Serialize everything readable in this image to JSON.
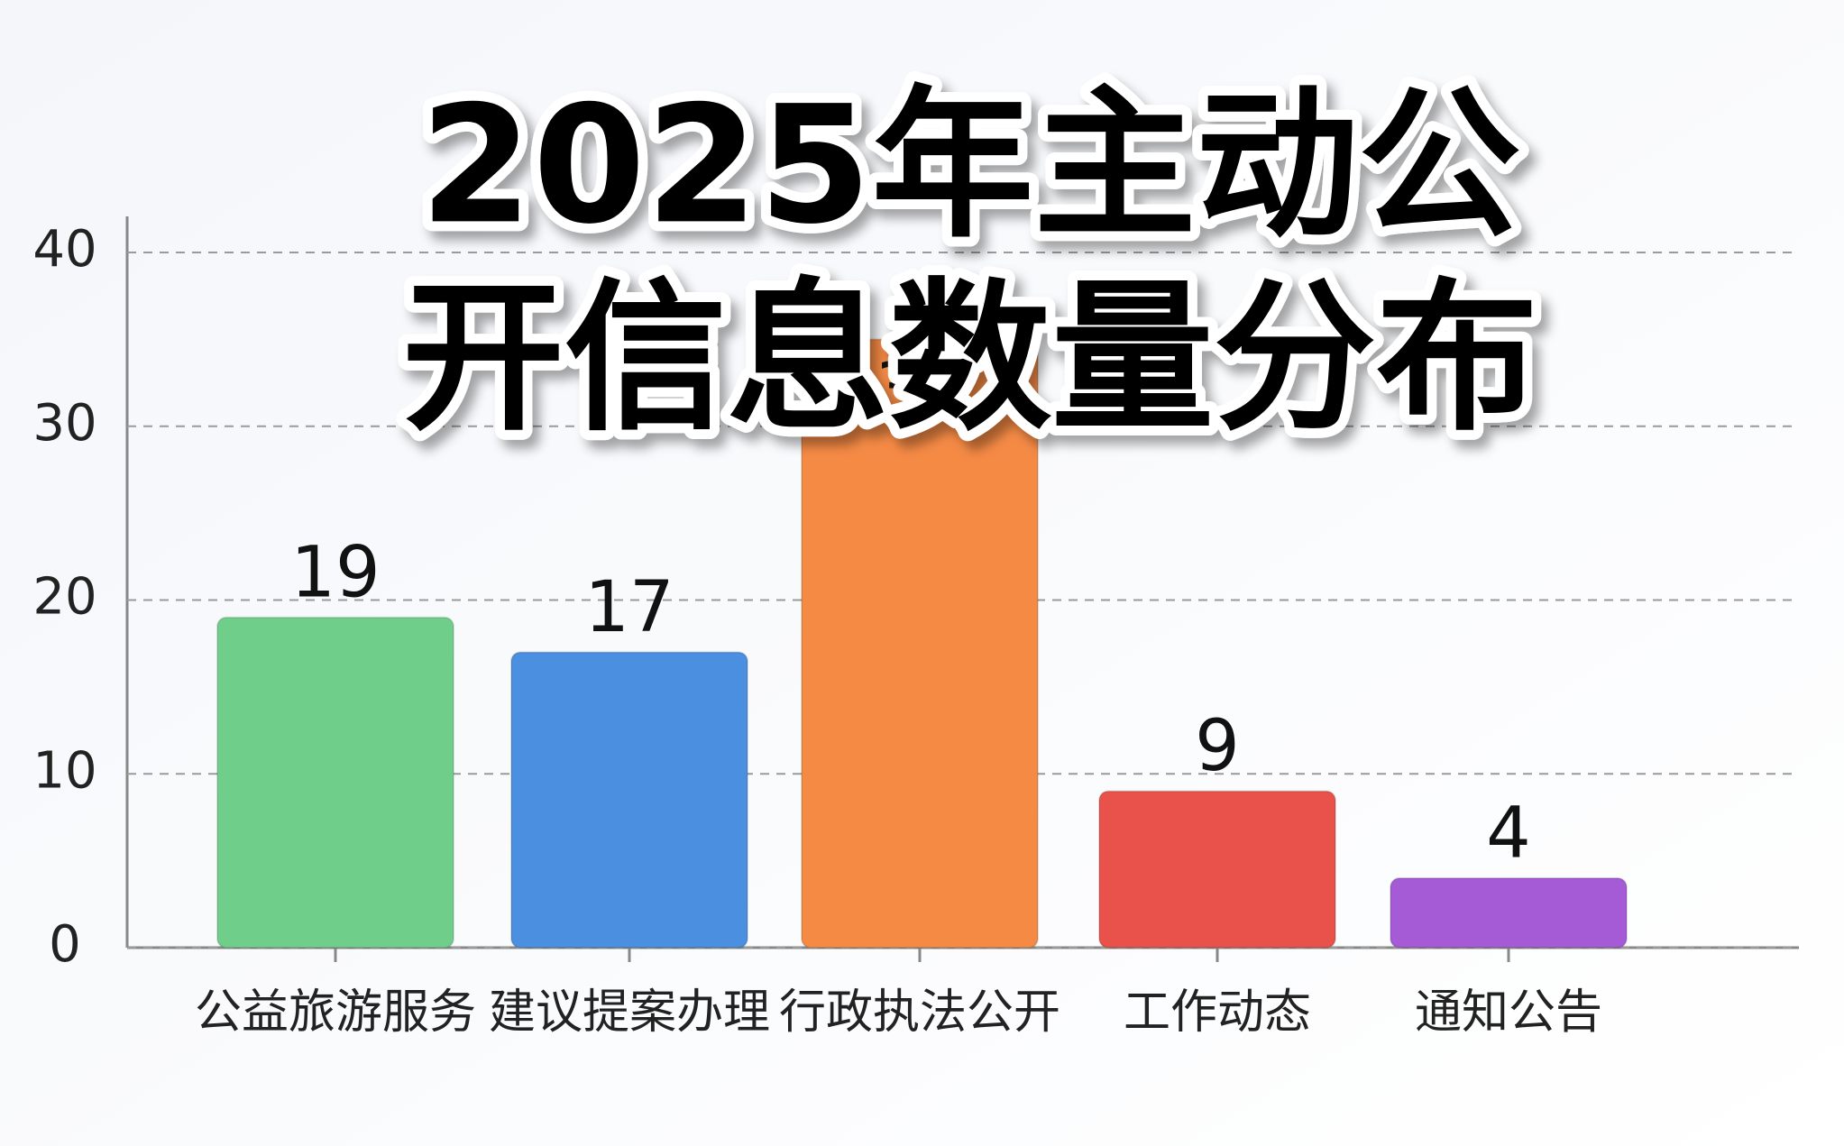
{
  "chart_data": {
    "type": "bar",
    "title": [
      "2025年主动公",
      "开信息数量分布"
    ],
    "categories": [
      "公益旅游服务",
      "建议提案办理",
      "行政执法公开",
      "工作动态",
      "通知公告"
    ],
    "values": [
      19,
      17,
      35,
      9,
      4
    ],
    "colors": [
      "#6fcf8a",
      "#4a8fe0",
      "#f58a45",
      "#e8524a",
      "#a55ad6"
    ],
    "ylim": [
      0,
      40
    ],
    "yticks": [
      0,
      10,
      20,
      30,
      40
    ],
    "grid": true
  }
}
